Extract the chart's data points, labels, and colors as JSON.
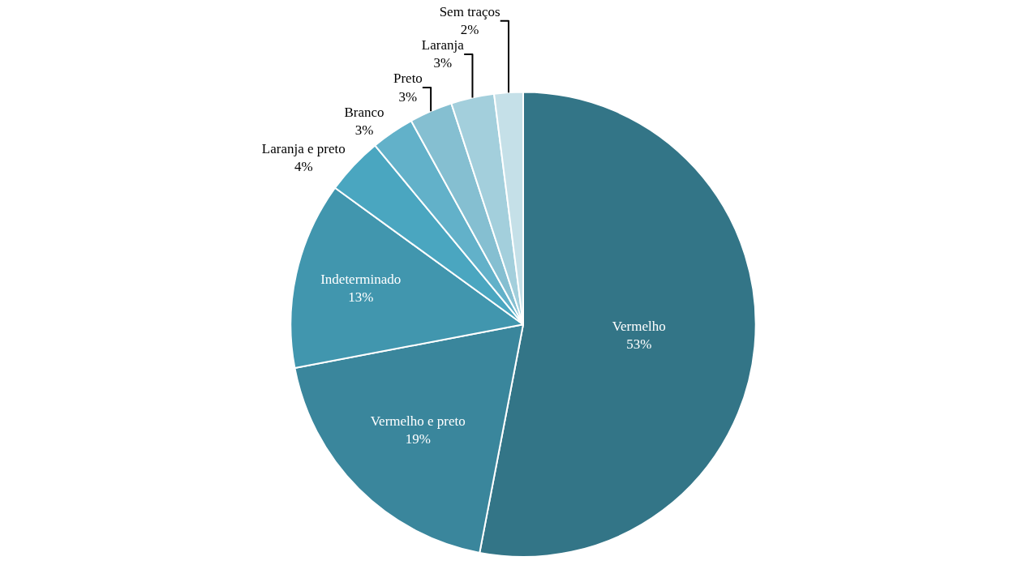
{
  "chart_data": {
    "type": "pie",
    "categories": [
      "Vermelho",
      "Vermelho e preto",
      "Indeterminado",
      "Laranja e preto",
      "Branco",
      "Preto",
      "Laranja",
      "Sem traços"
    ],
    "values": [
      53,
      19,
      13,
      4,
      3,
      3,
      3,
      2
    ],
    "value_labels": [
      "53%",
      "19%",
      "13%",
      "4%",
      "3%",
      "3%",
      "3%",
      "2%"
    ],
    "colors": [
      "#337587",
      "#3a869c",
      "#4196ae",
      "#4aa6c0",
      "#62b1c9",
      "#85bfd1",
      "#a3cfdc",
      "#c5e0e8"
    ],
    "legend": false
  }
}
